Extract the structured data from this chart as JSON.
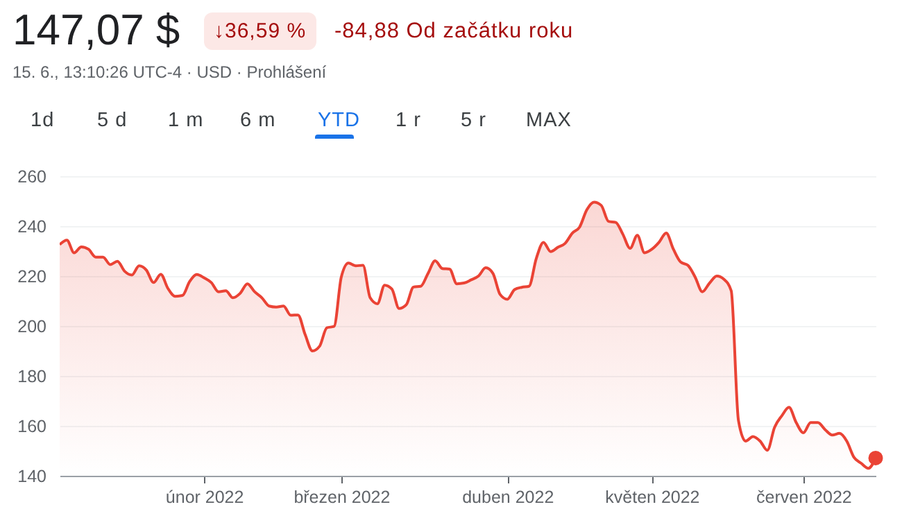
{
  "chart_data": {
    "type": "area",
    "title": "147,07 $",
    "subtitle": "15. 6., 13:10:26 UTC-4 · USD · Prohlášení",
    "annotations": [
      "↓36,59 %",
      "-84,88 Od začátku roku",
      "1d",
      "5 d",
      "1 m",
      "6 m",
      "YTD",
      "1 r",
      "5 r",
      "MAX"
    ],
    "categories": [
      null,
      null,
      null,
      null,
      null,
      null,
      null,
      null,
      null,
      null,
      null,
      null,
      null,
      null,
      null,
      null,
      null,
      null,
      null,
      null,
      "únor 2022",
      null,
      null,
      null,
      null,
      null,
      null,
      null,
      null,
      null,
      null,
      null,
      null,
      null,
      null,
      null,
      null,
      null,
      null,
      "březen 2022",
      null,
      null,
      null,
      null,
      null,
      null,
      null,
      null,
      null,
      null,
      null,
      null,
      null,
      null,
      null,
      null,
      null,
      null,
      null,
      null,
      null,
      null,
      "duben 2022",
      null,
      null,
      null,
      null,
      null,
      null,
      null,
      null,
      null,
      null,
      null,
      null,
      null,
      null,
      null,
      null,
      null,
      null,
      null,
      "květen 2022",
      null,
      null,
      null,
      null,
      null,
      null,
      null,
      null,
      null,
      null,
      null,
      null,
      null,
      null,
      null,
      null,
      null,
      null,
      null,
      null,
      "červen 2022",
      null,
      null,
      null,
      null,
      null,
      null,
      null,
      null,
      null,
      null
    ],
    "ylim": [
      140,
      260
    ],
    "yticks": [
      140,
      160,
      180,
      200,
      220,
      240,
      260
    ],
    "grid": "y",
    "series": [
      {
        "color": "#ea4335",
        "values": [
          232.6,
          234.4,
          229.3,
          231.7,
          230.7,
          227.6,
          227.6,
          224.6,
          225.9,
          221.9,
          220.4,
          224.1,
          222.4,
          217.4,
          220.7,
          215,
          211.9,
          212.2,
          217.8,
          220.6,
          219.3,
          217.4,
          213.7,
          214.1,
          211.3,
          213.1,
          216.9,
          213.7,
          211.3,
          208,
          207.6,
          208,
          204.3,
          204.4,
          196.5,
          190,
          191.9,
          199.3,
          199.8,
          219.6,
          225.2,
          224.1,
          224.3,
          211.3,
          208.9,
          216.3,
          214.8,
          207,
          208.5,
          215.6,
          215.9,
          221,
          226.1,
          223,
          222.8,
          216.9,
          217.2,
          218.5,
          220,
          223.3,
          221.1,
          212.6,
          210.7,
          214.6,
          215.5,
          215.9,
          227,
          233.5,
          229.8,
          231.5,
          233.1,
          237.2,
          239.6,
          246.5,
          249.6,
          248.3,
          241.9,
          241.5,
          236.7,
          231.1,
          236.3,
          229.3,
          230.7,
          233.5,
          237.2,
          230.7,
          225.6,
          224.3,
          219.6,
          213.7,
          217.2,
          220,
          218.7,
          214.1,
          162.2,
          153.9,
          155.7,
          153.9,
          150.2,
          159.4,
          164,
          167.4,
          161.3,
          157.2,
          161.3,
          161.3,
          158.5,
          156.3,
          157,
          153.9,
          147.4,
          145,
          143,
          147.1
        ]
      },
      {
        "type": "scatter",
        "color": "#ea4335",
        "marker": "circle",
        "values": [
          null,
          null,
          null,
          null,
          null,
          null,
          null,
          null,
          null,
          null,
          null,
          null,
          null,
          null,
          null,
          null,
          null,
          null,
          null,
          null,
          null,
          null,
          null,
          null,
          null,
          null,
          null,
          null,
          null,
          null,
          null,
          null,
          null,
          null,
          null,
          null,
          null,
          null,
          null,
          null,
          null,
          null,
          null,
          null,
          null,
          null,
          null,
          null,
          null,
          null,
          null,
          null,
          null,
          null,
          null,
          null,
          null,
          null,
          null,
          null,
          null,
          null,
          null,
          null,
          null,
          null,
          null,
          null,
          null,
          null,
          null,
          null,
          null,
          null,
          null,
          null,
          null,
          null,
          null,
          null,
          null,
          null,
          null,
          null,
          null,
          null,
          null,
          null,
          null,
          null,
          null,
          null,
          null,
          null,
          null,
          null,
          null,
          null,
          null,
          null,
          null,
          null,
          null,
          null,
          null,
          null,
          null,
          null,
          null,
          null,
          null,
          null,
          null,
          147.1
        ]
      }
    ]
  }
}
